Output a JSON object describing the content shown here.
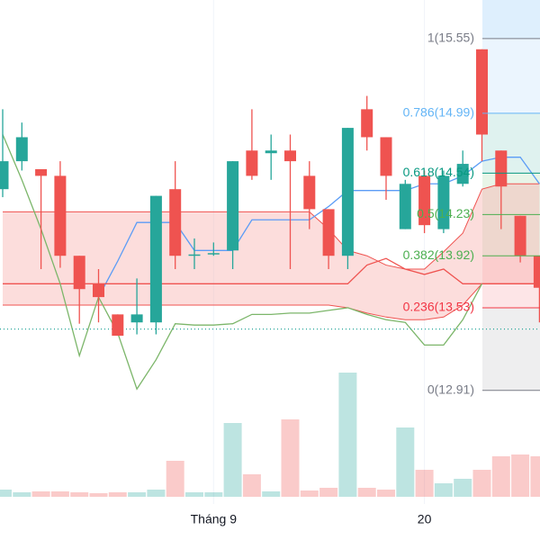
{
  "chart_data": {
    "type": "candlestick",
    "categories": [
      null,
      null,
      null,
      null,
      null,
      null,
      null,
      null,
      null,
      null,
      null,
      "Tháng 9",
      null,
      null,
      null,
      null,
      null,
      null,
      null,
      null,
      null,
      null,
      "20",
      null,
      null,
      null,
      null,
      null,
      null
    ],
    "ylim": [
      12.8,
      15.84
    ],
    "up_color": "#26a69a",
    "down_color": "#ef5350",
    "open": [
      14.42,
      14.63,
      14.57,
      14.52,
      13.92,
      13.71,
      13.48,
      13.42,
      13.42,
      14.42,
      13.92,
      13.93,
      13.96,
      14.71,
      14.69,
      14.71,
      14.52,
      14.27,
      13.92,
      15.02,
      14.81,
      14.12,
      14.52,
      14.12,
      14.46,
      15.47,
      14.71,
      14.22,
      13.92
    ],
    "high": [
      15.02,
      14.92,
      14.57,
      14.63,
      13.92,
      13.82,
      13.48,
      13.75,
      14.37,
      14.63,
      14.05,
      14.02,
      14.63,
      15.02,
      14.83,
      14.83,
      14.63,
      14.27,
      14.88,
      15.12,
      14.81,
      14.49,
      14.56,
      14.56,
      14.71,
      15.47,
      14.71,
      14.22,
      13.92
    ],
    "low": [
      14.36,
      14.56,
      13.82,
      13.83,
      13.41,
      13.42,
      13.32,
      13.33,
      13.33,
      13.82,
      13.82,
      13.92,
      13.82,
      14.49,
      14.49,
      13.82,
      14.12,
      13.82,
      13.82,
      14.71,
      14.34,
      14.12,
      14.09,
      14.09,
      14.44,
      14.63,
      14.12,
      13.87,
      13.42
    ],
    "close": [
      14.63,
      14.81,
      14.52,
      13.92,
      13.67,
      13.61,
      13.32,
      13.48,
      14.37,
      13.92,
      13.93,
      13.94,
      14.63,
      14.52,
      14.71,
      14.63,
      14.27,
      13.92,
      14.88,
      14.81,
      14.52,
      14.46,
      14.15,
      14.52,
      14.61,
      14.83,
      14.44,
      13.92,
      13.68
    ],
    "volume": [
      8,
      5,
      6,
      6,
      5,
      4,
      5,
      5,
      8,
      40,
      5,
      5,
      82,
      25,
      6,
      86,
      7,
      10,
      138,
      10,
      8,
      77,
      30,
      15,
      20,
      30,
      45,
      47,
      45
    ],
    "volume_lim": [
      0,
      150
    ],
    "lines": [
      {
        "color": "#5b9cf6",
        "values": [
          null,
          null,
          null,
          null,
          null,
          13.61,
          13.88,
          14.17,
          14.17,
          14.17,
          13.96,
          13.96,
          13.96,
          14.19,
          14.19,
          14.19,
          14.19,
          14.29,
          14.41,
          14.41,
          14.41,
          14.41,
          14.46,
          14.46,
          14.52,
          14.63,
          14.66,
          14.66,
          14.46
        ]
      },
      {
        "color": "#ef5350",
        "values": [
          13.71,
          13.71,
          13.71,
          13.71,
          13.71,
          13.71,
          13.71,
          13.71,
          13.71,
          13.71,
          13.71,
          13.71,
          13.71,
          13.71,
          13.71,
          13.71,
          13.71,
          13.71,
          13.71,
          13.85,
          13.9,
          13.82,
          13.78,
          13.82,
          13.71,
          13.71,
          13.71,
          13.71,
          13.71
        ]
      },
      {
        "color": "#7cb66a",
        "values": [
          14.83,
          14.49,
          14.12,
          13.71,
          13.17,
          13.61,
          13.34,
          12.92,
          13.14,
          13.41,
          13.4,
          13.4,
          13.41,
          13.48,
          13.48,
          13.49,
          13.49,
          13.51,
          13.53,
          13.48,
          13.44,
          13.42,
          13.25,
          13.25,
          13.44,
          13.71,
          null,
          null,
          null
        ]
      }
    ],
    "cloud": {
      "color": "#f7a9a8",
      "span_a": [
        14.25,
        14.25,
        14.25,
        14.25,
        14.25,
        14.25,
        14.25,
        14.25,
        14.25,
        14.25,
        14.25,
        14.25,
        14.25,
        14.25,
        14.25,
        14.25,
        14.25,
        14.12,
        13.96,
        13.92,
        13.85,
        13.82,
        13.82,
        13.95,
        14.09,
        14.42,
        14.46,
        14.46,
        14.46
      ],
      "span_b": [
        13.55,
        13.55,
        13.55,
        13.55,
        13.55,
        13.55,
        13.55,
        13.55,
        13.55,
        13.55,
        13.55,
        13.55,
        13.55,
        13.55,
        13.55,
        13.55,
        13.55,
        13.55,
        13.53,
        13.49,
        13.46,
        13.44,
        13.44,
        13.46,
        13.55,
        13.71,
        13.71,
        13.71,
        13.71
      ]
    },
    "price_line": 13.37,
    "price_line_color": "#26a69a",
    "fib_top_color": "#2196f3",
    "fib_levels": [
      {
        "value": 15.55,
        "label": "1(15.55)",
        "color": "#787b86"
      },
      {
        "value": 14.99,
        "label": "0.786(14.99)",
        "color": "#64b5f6"
      },
      {
        "value": 14.54,
        "label": "0.618(14.54)",
        "color": "#089981"
      },
      {
        "value": 14.23,
        "label": "0.5(14.23)",
        "color": "#4caf50"
      },
      {
        "value": 13.92,
        "label": "0.382(13.92)",
        "color": "#4caf50"
      },
      {
        "value": 13.53,
        "label": "0.236(13.53)",
        "color": "#f23645"
      },
      {
        "value": 12.91,
        "label": "0(12.91)",
        "color": "#787b86"
      }
    ]
  }
}
